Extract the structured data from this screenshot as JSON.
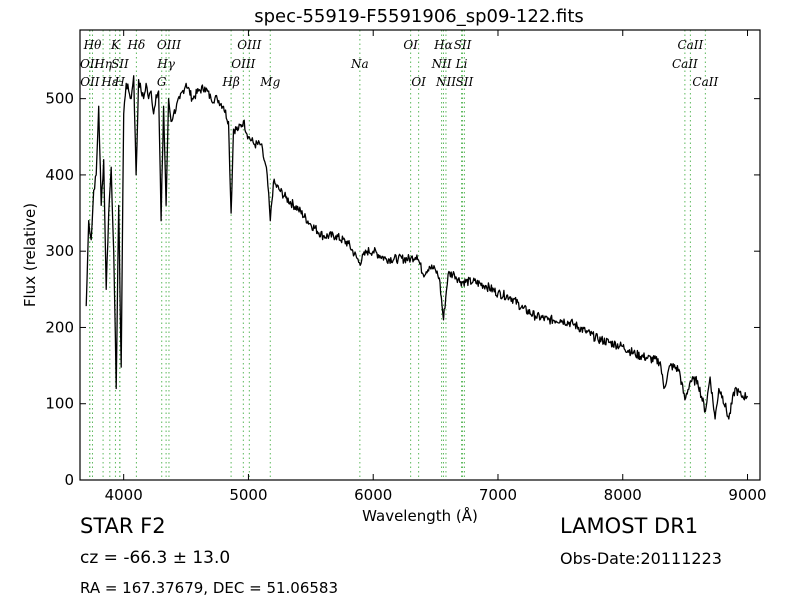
{
  "chart_data": {
    "type": "line",
    "title": "spec-55919-F5591906_sp09-122.fits",
    "xlabel": "Wavelength (Å)",
    "ylabel": "Flux (relative)",
    "xlim": [
      3650,
      9100
    ],
    "ylim": [
      0,
      590
    ],
    "xticks": [
      4000,
      5000,
      6000,
      7000,
      8000,
      9000
    ],
    "yticks": [
      0,
      100,
      200,
      300,
      400,
      500
    ],
    "grid": false,
    "line_color": "#000000",
    "marker_color": "#5cb85c",
    "spectrum": {
      "x": [
        3700,
        3720,
        3740,
        3760,
        3780,
        3800,
        3820,
        3840,
        3860,
        3880,
        3900,
        3920,
        3940,
        3960,
        3980,
        4000,
        4020,
        4040,
        4060,
        4080,
        4100,
        4120,
        4140,
        4160,
        4180,
        4200,
        4220,
        4240,
        4260,
        4280,
        4300,
        4320,
        4340,
        4360,
        4380,
        4400,
        4450,
        4500,
        4550,
        4600,
        4650,
        4700,
        4750,
        4800,
        4840,
        4861,
        4880,
        4920,
        4960,
        5000,
        5050,
        5100,
        5150,
        5175,
        5200,
        5250,
        5300,
        5400,
        5500,
        5600,
        5700,
        5800,
        5890,
        5950,
        6000,
        6100,
        6200,
        6300,
        6350,
        6400,
        6450,
        6500,
        6530,
        6563,
        6600,
        6650,
        6700,
        6800,
        6900,
        7000,
        7100,
        7200,
        7300,
        7400,
        7500,
        7600,
        7700,
        7800,
        7900,
        8000,
        8100,
        8200,
        8300,
        8330,
        8380,
        8450,
        8498,
        8542,
        8600,
        8662,
        8700,
        8740,
        8770,
        8800,
        8850,
        8900,
        8950,
        9000
      ],
      "y": [
        228,
        340,
        315,
        380,
        400,
        490,
        360,
        420,
        250,
        350,
        410,
        300,
        120,
        360,
        148,
        480,
        520,
        510,
        500,
        530,
        400,
        525,
        510,
        500,
        520,
        500,
        510,
        480,
        505,
        510,
        340,
        490,
        360,
        500,
        470,
        480,
        500,
        520,
        500,
        510,
        515,
        500,
        500,
        490,
        470,
        350,
        460,
        460,
        470,
        450,
        440,
        440,
        400,
        340,
        390,
        380,
        370,
        355,
        335,
        320,
        320,
        310,
        285,
        300,
        300,
        290,
        290,
        290,
        295,
        270,
        280,
        275,
        265,
        210,
        270,
        270,
        260,
        260,
        255,
        245,
        240,
        225,
        215,
        210,
        210,
        205,
        195,
        185,
        180,
        175,
        165,
        160,
        155,
        120,
        150,
        145,
        105,
        130,
        130,
        90,
        135,
        80,
        120,
        110,
        80,
        120,
        110,
        110
      ]
    },
    "lines": [
      {
        "name": "OII",
        "x": 3727,
        "row": 2
      },
      {
        "name": "OII",
        "x": 3729,
        "row": 3
      },
      {
        "name": "Hθ",
        "x": 3750,
        "row": 1
      },
      {
        "name": "Hη",
        "x": 3835,
        "row": 2
      },
      {
        "name": "Hε",
        "x": 3889,
        "row": 3
      },
      {
        "name": "K",
        "x": 3934,
        "row": 1
      },
      {
        "name": "SII",
        "x": 3970,
        "row": 2
      },
      {
        "name": "H",
        "x": 3968,
        "row": 3
      },
      {
        "name": "Hδ",
        "x": 4102,
        "row": 1
      },
      {
        "name": "OIII",
        "x": 4363,
        "row": 1
      },
      {
        "name": "Hγ",
        "x": 4340,
        "row": 2
      },
      {
        "name": "G",
        "x": 4305,
        "row": 3
      },
      {
        "name": "Hβ",
        "x": 4861,
        "row": 3
      },
      {
        "name": "OIII",
        "x": 4959,
        "row": 2
      },
      {
        "name": "OIII",
        "x": 5007,
        "row": 1
      },
      {
        "name": "Mg",
        "x": 5175,
        "row": 3
      },
      {
        "name": "Na",
        "x": 5893,
        "row": 2
      },
      {
        "name": "OI",
        "x": 6300,
        "row": 1
      },
      {
        "name": "OI",
        "x": 6364,
        "row": 3
      },
      {
        "name": "NII",
        "x": 6548,
        "row": 2
      },
      {
        "name": "Hα",
        "x": 6563,
        "row": 1
      },
      {
        "name": "NII",
        "x": 6583,
        "row": 3
      },
      {
        "name": "SII",
        "x": 6716,
        "row": 1
      },
      {
        "name": "Li",
        "x": 6708,
        "row": 2
      },
      {
        "name": "SII",
        "x": 6731,
        "row": 3
      },
      {
        "name": "CaII",
        "x": 8498,
        "row": 2
      },
      {
        "name": "CaII",
        "x": 8542,
        "row": 1
      },
      {
        "name": "CaII",
        "x": 8662,
        "row": 3
      }
    ]
  },
  "info": {
    "star_class": "STAR   F2",
    "survey": "LAMOST DR1",
    "cz": "cz = -66.3 ± 13.0",
    "obs_date": "Obs-Date:20111223",
    "radec": "RA = 167.37679, DEC = 51.06583"
  }
}
